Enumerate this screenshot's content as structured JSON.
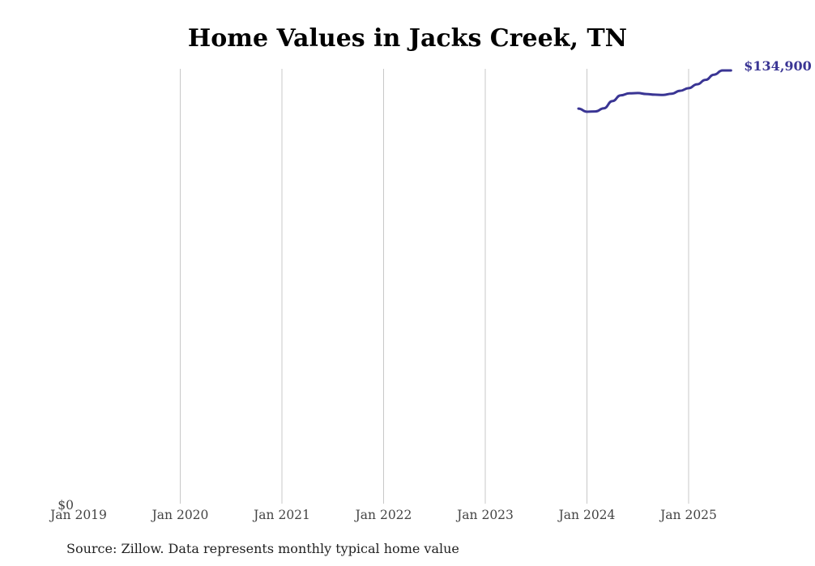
{
  "chart_data": {
    "type": "line",
    "title": "Home Values in Jacks Creek, TN",
    "source": "Source: Zillow. Data represents monthly typical home value",
    "xlabel": "",
    "ylabel": "",
    "x_ticks": [
      "Jan 2019",
      "Jan 2020",
      "Jan 2021",
      "Jan 2022",
      "Jan 2023",
      "Jan 2024",
      "Jan 2025"
    ],
    "y_ticks": [
      "$0"
    ],
    "ylim": [
      0,
      134900
    ],
    "grid": "vertical",
    "line_color": "#3a3594",
    "end_label": "$134,900",
    "series": [
      {
        "values": [
          {
            "x": "2023-12",
            "y": 123100
          },
          {
            "x": "2024-01",
            "y": 122100
          },
          {
            "x": "2024-02",
            "y": 122200
          },
          {
            "x": "2024-03",
            "y": 123200
          },
          {
            "x": "2024-04",
            "y": 125400
          },
          {
            "x": "2024-05",
            "y": 127200
          },
          {
            "x": "2024-06",
            "y": 127800
          },
          {
            "x": "2024-07",
            "y": 127900
          },
          {
            "x": "2024-08",
            "y": 127600
          },
          {
            "x": "2024-09",
            "y": 127400
          },
          {
            "x": "2024-10",
            "y": 127300
          },
          {
            "x": "2024-11",
            "y": 127700
          },
          {
            "x": "2024-12",
            "y": 128600
          },
          {
            "x": "2025-01",
            "y": 129400
          },
          {
            "x": "2025-02",
            "y": 130600
          },
          {
            "x": "2025-03",
            "y": 132000
          },
          {
            "x": "2025-04",
            "y": 133600
          },
          {
            "x": "2025-05",
            "y": 134900
          },
          {
            "x": "2025-06",
            "y": 134900
          }
        ]
      }
    ]
  }
}
